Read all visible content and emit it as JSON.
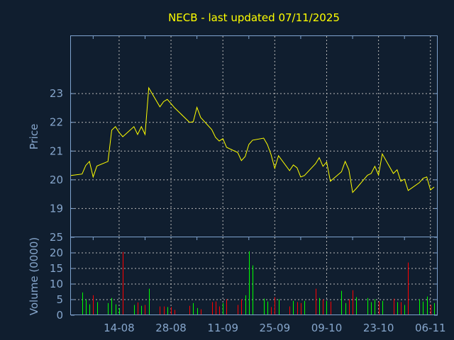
{
  "chart_data": [
    {
      "type": "line",
      "title": "NECB - last updated 07/11/2025",
      "ylabel": "Price",
      "ylim": [
        18,
        25
      ],
      "yticks": [
        "19",
        "20",
        "21",
        "22",
        "23"
      ],
      "grid": true,
      "line_color": "#ffff00",
      "dates": [
        "2025-08-01",
        "2025-08-04",
        "2025-08-05",
        "2025-08-06",
        "2025-08-07",
        "2025-08-08",
        "2025-08-11",
        "2025-08-12",
        "2025-08-13",
        "2025-08-14",
        "2025-08-15",
        "2025-08-18",
        "2025-08-19",
        "2025-08-20",
        "2025-08-21",
        "2025-08-22",
        "2025-08-25",
        "2025-08-26",
        "2025-08-27",
        "2025-08-28",
        "2025-08-29",
        "2025-09-02",
        "2025-09-03",
        "2025-09-04",
        "2025-09-05",
        "2025-09-08",
        "2025-09-09",
        "2025-09-10",
        "2025-09-11",
        "2025-09-12",
        "2025-09-15",
        "2025-09-16",
        "2025-09-17",
        "2025-09-18",
        "2025-09-19",
        "2025-09-22",
        "2025-09-23",
        "2025-09-24",
        "2025-09-25",
        "2025-09-26",
        "2025-09-29",
        "2025-09-30",
        "2025-10-01",
        "2025-10-02",
        "2025-10-03",
        "2025-10-06",
        "2025-10-07",
        "2025-10-08",
        "2025-10-09",
        "2025-10-10",
        "2025-10-13",
        "2025-10-14",
        "2025-10-15",
        "2025-10-16",
        "2025-10-17",
        "2025-10-20",
        "2025-10-21",
        "2025-10-22",
        "2025-10-23",
        "2025-10-24",
        "2025-10-27",
        "2025-10-28",
        "2025-10-29",
        "2025-10-30",
        "2025-10-31",
        "2025-11-03",
        "2025-11-04",
        "2025-11-05",
        "2025-11-06",
        "2025-11-07"
      ],
      "values": [
        20.15,
        20.2,
        20.5,
        20.64,
        20.1,
        20.48,
        20.64,
        21.73,
        21.85,
        21.65,
        21.5,
        21.85,
        21.58,
        21.85,
        21.58,
        23.2,
        22.54,
        22.72,
        22.8,
        22.65,
        22.5,
        22.0,
        22.02,
        22.52,
        22.17,
        21.75,
        21.48,
        21.35,
        21.43,
        21.13,
        20.95,
        20.67,
        20.81,
        21.23,
        21.38,
        21.45,
        21.23,
        20.88,
        20.4,
        20.84,
        20.32,
        20.52,
        20.42,
        20.1,
        20.15,
        20.56,
        20.77,
        20.47,
        20.62,
        19.95,
        20.28,
        20.64,
        20.35,
        19.56,
        19.7,
        20.16,
        20.22,
        20.47,
        20.17,
        20.9,
        20.22,
        20.35,
        19.95,
        20.02,
        19.63,
        19.9,
        20.05,
        20.1,
        19.65,
        19.75
      ]
    },
    {
      "type": "bar",
      "ylabel": "Volume (0000)",
      "ylim": [
        0,
        25
      ],
      "yticks": [
        "0",
        "5",
        "10",
        "15",
        "20",
        "25"
      ],
      "xticks": [
        "14-08",
        "28-08",
        "11-09",
        "25-09",
        "09-10",
        "23-10",
        "06-11"
      ],
      "xlim": [
        "2025-08-01",
        "2025-11-07"
      ],
      "grid": true,
      "colors": {
        "up": "#00ff00",
        "down": "#ff0000"
      },
      "dates": [
        "2025-08-04",
        "2025-08-05",
        "2025-08-06",
        "2025-08-07",
        "2025-08-08",
        "2025-08-11",
        "2025-08-12",
        "2025-08-13",
        "2025-08-14",
        "2025-08-15",
        "2025-08-18",
        "2025-08-19",
        "2025-08-20",
        "2025-08-21",
        "2025-08-22",
        "2025-08-25",
        "2025-08-26",
        "2025-08-27",
        "2025-08-28",
        "2025-08-29",
        "2025-09-02",
        "2025-09-03",
        "2025-09-04",
        "2025-09-05",
        "2025-09-08",
        "2025-09-09",
        "2025-09-10",
        "2025-09-11",
        "2025-09-12",
        "2025-09-15",
        "2025-09-16",
        "2025-09-17",
        "2025-09-18",
        "2025-09-19",
        "2025-09-22",
        "2025-09-23",
        "2025-09-24",
        "2025-09-25",
        "2025-09-26",
        "2025-09-29",
        "2025-09-30",
        "2025-10-01",
        "2025-10-02",
        "2025-10-03",
        "2025-10-06",
        "2025-10-07",
        "2025-10-08",
        "2025-10-09",
        "2025-10-10",
        "2025-10-13",
        "2025-10-14",
        "2025-10-15",
        "2025-10-16",
        "2025-10-17",
        "2025-10-20",
        "2025-10-21",
        "2025-10-22",
        "2025-10-23",
        "2025-10-24",
        "2025-10-27",
        "2025-10-28",
        "2025-10-29",
        "2025-10-30",
        "2025-10-31",
        "2025-11-03",
        "2025-11-04",
        "2025-11-05",
        "2025-11-06",
        "2025-11-07"
      ],
      "values": [
        7.3,
        5,
        3.5,
        6.4,
        4.2,
        3.9,
        5.5,
        3.5,
        2.3,
        20.3,
        3.3,
        4.1,
        3,
        3.3,
        8.5,
        2.8,
        2.8,
        2.6,
        2.6,
        1.7,
        3,
        3.9,
        2.3,
        1.9,
        4.2,
        4.4,
        2.8,
        3.9,
        5.1,
        3.3,
        5.1,
        6.4,
        20.5,
        16,
        5.3,
        4.4,
        2.6,
        5.8,
        5.1,
        2.8,
        4.6,
        4.2,
        3.9,
        4.6,
        8.5,
        5.5,
        5.1,
        4.6,
        4.4,
        7.8,
        3.9,
        5.1,
        8,
        5.8,
        5.5,
        4.2,
        5.1,
        4.4,
        4.6,
        5.3,
        4.2,
        4.2,
        3.3,
        16.9,
        5.1,
        4.4,
        6,
        3.3,
        3.9
      ],
      "direction": [
        "up",
        "up",
        "up",
        "down",
        "up",
        "up",
        "up",
        "up",
        "up",
        "down",
        "up",
        "down",
        "up",
        "down",
        "up",
        "down",
        "down",
        "up",
        "down",
        "down",
        "down",
        "up",
        "up",
        "down",
        "down",
        "down",
        "down",
        "up",
        "down",
        "down",
        "down",
        "up",
        "up",
        "up",
        "up",
        "up",
        "down",
        "down",
        "up",
        "down",
        "up",
        "down",
        "down",
        "up",
        "down",
        "up",
        "down",
        "up",
        "down",
        "up",
        "up",
        "down",
        "down",
        "up",
        "up",
        "up",
        "up",
        "down",
        "up",
        "down",
        "up",
        "down",
        "up",
        "down",
        "up",
        "up",
        "up",
        "down",
        "up"
      ]
    }
  ]
}
